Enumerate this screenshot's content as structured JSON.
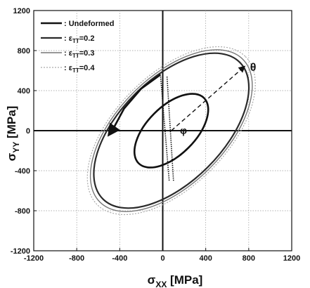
{
  "chart_data": {
    "type": "line",
    "x_axis": {
      "symbol": "σ",
      "subscript": "XX",
      "unit": " [MPa]",
      "range": [
        -1200,
        1200
      ],
      "ticks": [
        -1200,
        -800,
        -400,
        0,
        400,
        800,
        1200
      ]
    },
    "y_axis": {
      "symbol": "σ",
      "subscript": "YY",
      "unit": " [MPa]",
      "range": [
        -1200,
        1200
      ],
      "ticks": [
        -1200,
        -800,
        -400,
        0,
        400,
        800,
        1200
      ]
    },
    "grid": true,
    "legend_position": "top-left",
    "series": [
      {
        "name": ": Undeformed",
        "sym": "",
        "sub": "",
        "val": "",
        "center": [
          80,
          0
        ],
        "semi_major": 430,
        "semi_minor": 225,
        "angle_deg": 45,
        "color": "#111111",
        "width": 2.6,
        "dash": ""
      },
      {
        "name": ": ε",
        "sym": "ε",
        "sub": "TT",
        "val": "=0.2",
        "center": [
          80,
          0
        ],
        "semi_major": 900,
        "semi_minor": 480,
        "angle_deg": 45,
        "color": "#2a2a2a",
        "width": 2.2,
        "dash": ""
      },
      {
        "name": ": ε",
        "sym": "ε",
        "sub": "TT",
        "val": "=0.3",
        "center": [
          80,
          0
        ],
        "semi_major": 940,
        "semi_minor": 500,
        "angle_deg": 45,
        "color": "#777777",
        "width": 1.4,
        "dash": ""
      },
      {
        "name": ": ε",
        "sym": "ε",
        "sub": "TT",
        "val": "=0.4",
        "center": [
          80,
          0
        ],
        "semi_major": 975,
        "semi_minor": 520,
        "angle_deg": 45,
        "color": "#aaaaaa",
        "width": 1.2,
        "dash": "2,2"
      }
    ],
    "annotations": {
      "theta": "θ",
      "phi": "φ",
      "theta_arrow": {
        "from": [
          80,
          0
        ],
        "to": [
          760,
          640
        ]
      },
      "rotation_arrow_path": [
        [
          -20,
          560
        ],
        [
          -200,
          420
        ],
        [
          -360,
          220
        ],
        [
          -460,
          20
        ],
        [
          -500,
          -40
        ]
      ],
      "dotted_band": [
        [
          -20,
          540
        ],
        [
          40,
          540
        ],
        [
          100,
          -500
        ],
        [
          60,
          -500
        ]
      ]
    }
  }
}
